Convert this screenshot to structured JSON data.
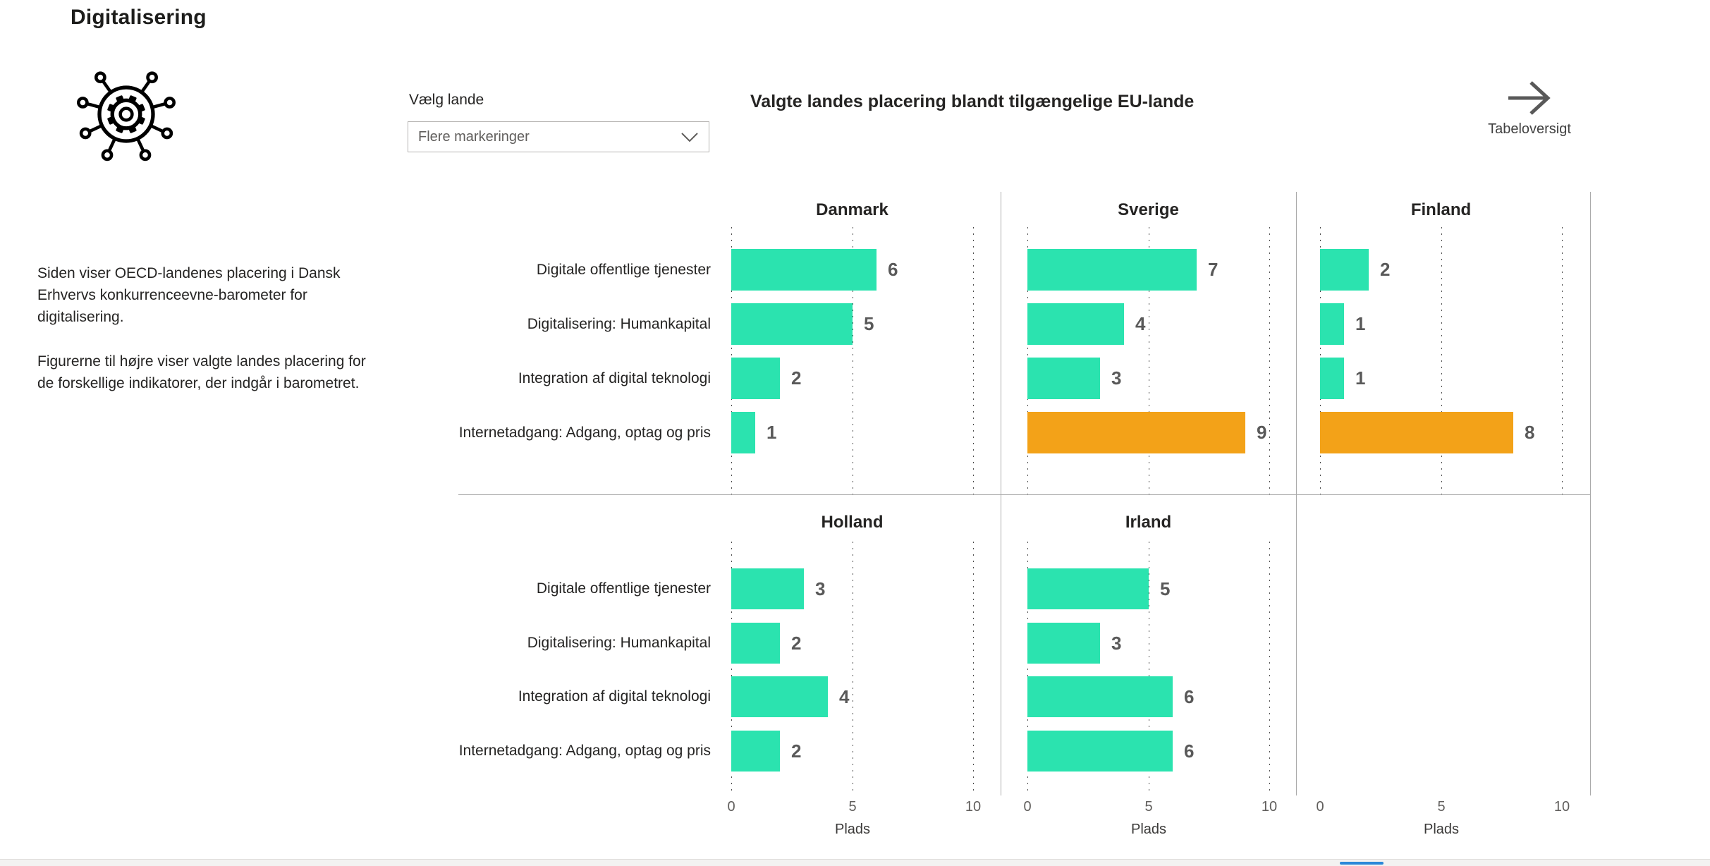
{
  "page": {
    "title": "Digitalisering"
  },
  "sidebar": {
    "icon": "digitalisering-gear-icon",
    "description_1": "Siden viser OECD-landenes placering i Dansk Erhvervs konkurrenceevne-barometer for digitalisering.",
    "description_2": "Figurerne til højre viser valgte landes placering for de forskellige indikatorer, der indgår i barometret."
  },
  "filter": {
    "label": "Vælg lande",
    "value": "Flere markeringer",
    "icon": "chevron-down-icon"
  },
  "table_link": {
    "label": "Tabeloversigt",
    "icon": "arrow-right-icon"
  },
  "chart_title": "Valgte landes placering blandt tilgængelige EU-lande",
  "colors": {
    "bar_teal": "#2BE3AF",
    "bar_orange": "#F3A218",
    "value_label": "#595959",
    "divider": "#ABABAB",
    "scrollbar_thumb": "#2B88D8"
  },
  "chart_data": {
    "type": "bar",
    "orientation": "horizontal",
    "title": "Valgte landes placering blandt tilgængelige EU-lande",
    "categories": [
      "Digitale offentlige tjenester",
      "Digitalisering: Humankapital",
      "Integration af digital teknologi",
      "Internetadgang: Adgang, optag og pris"
    ],
    "xlabel": "Plads",
    "xlim": [
      0,
      10
    ],
    "xticks": [
      0,
      5,
      10
    ],
    "grid": "dotted-vertical",
    "legend": "none",
    "panels": [
      {
        "name": "Danmark",
        "row": 0,
        "col": 0,
        "values": [
          6,
          5,
          2,
          1
        ],
        "bar_colors": [
          "teal",
          "teal",
          "teal",
          "teal"
        ]
      },
      {
        "name": "Sverige",
        "row": 0,
        "col": 1,
        "values": [
          7,
          4,
          3,
          9
        ],
        "bar_colors": [
          "teal",
          "teal",
          "teal",
          "orange"
        ]
      },
      {
        "name": "Finland",
        "row": 0,
        "col": 2,
        "values": [
          2,
          1,
          1,
          8
        ],
        "bar_colors": [
          "teal",
          "teal",
          "teal",
          "orange"
        ]
      },
      {
        "name": "Holland",
        "row": 1,
        "col": 0,
        "values": [
          3,
          2,
          4,
          2
        ],
        "bar_colors": [
          "teal",
          "teal",
          "teal",
          "teal"
        ]
      },
      {
        "name": "Irland",
        "row": 1,
        "col": 1,
        "values": [
          5,
          3,
          6,
          6
        ],
        "bar_colors": [
          "teal",
          "teal",
          "teal",
          "teal"
        ]
      }
    ]
  }
}
